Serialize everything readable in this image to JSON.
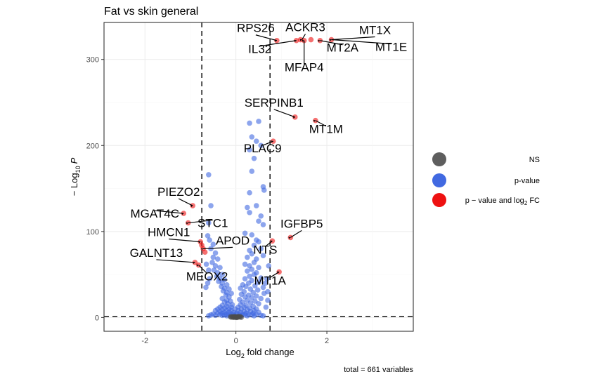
{
  "chart_data": {
    "type": "scatter",
    "title": "Fat vs skin general",
    "xlabel_prefix": "Log",
    "xlabel_sub": "2",
    "xlabel_suffix": " fold change",
    "ylabel_prefix": "− Log",
    "ylabel_sub": "10",
    "ylabel_var": "P",
    "xlim": [
      -2.9,
      3.9
    ],
    "ylim": [
      -16,
      343
    ],
    "xticks": [
      -2,
      0,
      2
    ],
    "yticks": [
      0,
      100,
      200,
      300
    ],
    "grid": true,
    "fc_cutoff": 0.75,
    "p_cutoff_y": 1.3,
    "caption": "total = 661 variables",
    "colors": {
      "ns": "#4d4d4d",
      "pvalue": "#4169e1",
      "both": "#ee1111"
    },
    "legend": {
      "placement": "right",
      "entries": [
        {
          "key": "ns",
          "label": "NS"
        },
        {
          "key": "pvalue",
          "label": "p-value"
        },
        {
          "key": "both",
          "label_prefix": "p − value and log",
          "label_sub": "2",
          "label_suffix": " FC"
        }
      ]
    },
    "series": [
      {
        "name": "p-value",
        "points": [
          [
            -0.6,
            166
          ],
          [
            -0.55,
            130
          ],
          [
            -0.6,
            110
          ],
          [
            -0.62,
            95
          ],
          [
            -0.58,
            90
          ],
          [
            -0.5,
            85
          ],
          [
            -0.55,
            80
          ],
          [
            -0.45,
            75
          ],
          [
            -0.5,
            70
          ],
          [
            -0.4,
            68
          ],
          [
            -0.52,
            64
          ],
          [
            -0.45,
            60
          ],
          [
            -0.35,
            58
          ],
          [
            -0.48,
            55
          ],
          [
            -0.4,
            52
          ],
          [
            -0.3,
            50
          ],
          [
            -0.42,
            48
          ],
          [
            -0.35,
            45
          ],
          [
            -0.25,
            44
          ],
          [
            -0.38,
            42
          ],
          [
            -0.3,
            40
          ],
          [
            -0.2,
            38
          ],
          [
            -0.32,
            36
          ],
          [
            -0.25,
            34
          ],
          [
            -0.15,
            33
          ],
          [
            -0.28,
            31
          ],
          [
            -0.2,
            29
          ],
          [
            -0.1,
            28
          ],
          [
            -0.22,
            26
          ],
          [
            -0.15,
            24
          ],
          [
            -0.3,
            22
          ],
          [
            -0.2,
            20
          ],
          [
            -0.12,
            19
          ],
          [
            -0.25,
            18
          ],
          [
            -0.18,
            16
          ],
          [
            -0.08,
            15
          ],
          [
            -0.3,
            14
          ],
          [
            -0.2,
            13
          ],
          [
            -0.1,
            12
          ],
          [
            -0.35,
            12
          ],
          [
            -0.25,
            11
          ],
          [
            -0.15,
            10
          ],
          [
            -0.4,
            10
          ],
          [
            -0.3,
            9
          ],
          [
            -0.2,
            8
          ],
          [
            -0.1,
            8
          ],
          [
            -0.45,
            8
          ],
          [
            -0.35,
            7
          ],
          [
            -0.25,
            6
          ],
          [
            -0.15,
            6
          ],
          [
            -0.05,
            6
          ],
          [
            -0.4,
            5
          ],
          [
            -0.3,
            5
          ],
          [
            -0.2,
            4
          ],
          [
            -0.1,
            4
          ],
          [
            -0.5,
            4
          ],
          [
            -0.35,
            3.5
          ],
          [
            -0.25,
            3
          ],
          [
            -0.15,
            3
          ],
          [
            -0.05,
            3
          ],
          [
            -0.55,
            3
          ],
          [
            -0.45,
            2.5
          ],
          [
            -0.3,
            2.5
          ],
          [
            -0.2,
            2
          ],
          [
            -0.1,
            2
          ],
          [
            -0.6,
            2
          ],
          [
            -0.65,
            62
          ],
          [
            -0.6,
            55
          ],
          [
            -0.58,
            45
          ],
          [
            -0.62,
            40
          ],
          [
            -0.66,
            35
          ],
          [
            0.3,
            226
          ],
          [
            0.5,
            228
          ],
          [
            0.35,
            210
          ],
          [
            0.45,
            205
          ],
          [
            0.55,
            200
          ],
          [
            0.3,
            195
          ],
          [
            0.4,
            185
          ],
          [
            0.35,
            170
          ],
          [
            0.6,
            152
          ],
          [
            0.62,
            148
          ],
          [
            0.3,
            145
          ],
          [
            0.45,
            130
          ],
          [
            0.25,
            128
          ],
          [
            0.3,
            122
          ],
          [
            0.55,
            118
          ],
          [
            0.5,
            112
          ],
          [
            0.6,
            108
          ],
          [
            0.2,
            98
          ],
          [
            0.35,
            96
          ],
          [
            0.45,
            90
          ],
          [
            0.5,
            88
          ],
          [
            0.4,
            84
          ],
          [
            0.55,
            80
          ],
          [
            0.3,
            78
          ],
          [
            0.35,
            74
          ],
          [
            0.6,
            72
          ],
          [
            0.25,
            70
          ],
          [
            0.45,
            68
          ],
          [
            0.4,
            64
          ],
          [
            0.2,
            62
          ],
          [
            0.3,
            60
          ],
          [
            0.5,
            58
          ],
          [
            0.35,
            56
          ],
          [
            0.25,
            54
          ],
          [
            0.45,
            52
          ],
          [
            0.4,
            50
          ],
          [
            0.3,
            48
          ],
          [
            0.55,
            46
          ],
          [
            0.2,
            45
          ],
          [
            0.35,
            43
          ],
          [
            0.5,
            41
          ],
          [
            0.28,
            40
          ],
          [
            0.15,
            38
          ],
          [
            0.42,
            37
          ],
          [
            0.22,
            36
          ],
          [
            0.6,
            35
          ],
          [
            0.1,
            34
          ],
          [
            0.32,
            33
          ],
          [
            0.48,
            32
          ],
          [
            0.18,
            30
          ],
          [
            0.38,
            29
          ],
          [
            0.62,
            28
          ],
          [
            0.12,
            27
          ],
          [
            0.28,
            26
          ],
          [
            0.45,
            25
          ],
          [
            0.2,
            24
          ],
          [
            0.35,
            23
          ],
          [
            0.55,
            22
          ],
          [
            0.08,
            21
          ],
          [
            0.25,
            20
          ],
          [
            0.42,
            19
          ],
          [
            0.15,
            18
          ],
          [
            0.32,
            17
          ],
          [
            0.5,
            16
          ],
          [
            0.1,
            15
          ],
          [
            0.22,
            14
          ],
          [
            0.38,
            13
          ],
          [
            0.05,
            12
          ],
          [
            0.18,
            12
          ],
          [
            0.3,
            11
          ],
          [
            0.45,
            10
          ],
          [
            0.12,
            10
          ],
          [
            0.25,
            9
          ],
          [
            0.4,
            8
          ],
          [
            0.05,
            8
          ],
          [
            0.18,
            7
          ],
          [
            0.32,
            7
          ],
          [
            0.5,
            6
          ],
          [
            0.1,
            6
          ],
          [
            0.22,
            5
          ],
          [
            0.38,
            5
          ],
          [
            0.02,
            5
          ],
          [
            0.15,
            4
          ],
          [
            0.28,
            4
          ],
          [
            0.45,
            3.5
          ],
          [
            0.08,
            3
          ],
          [
            0.2,
            3
          ],
          [
            0.35,
            3
          ],
          [
            0.55,
            2.5
          ],
          [
            0.12,
            2.5
          ],
          [
            0.25,
            2
          ],
          [
            0.4,
            2
          ],
          [
            0.6,
            2
          ],
          [
            0.7,
            30
          ],
          [
            0.68,
            45
          ],
          [
            0.72,
            60
          ],
          [
            0.65,
            40
          ],
          [
            0.7,
            20
          ],
          [
            0.66,
            12
          ],
          [
            -0.02,
            2
          ],
          [
            0.0,
            4
          ],
          [
            -0.02,
            10
          ]
        ]
      },
      {
        "name": "NS",
        "points": [
          [
            -0.05,
            0.2
          ],
          [
            -0.02,
            0.5
          ],
          [
            0.0,
            0.8
          ],
          [
            0.03,
            0.3
          ],
          [
            0.06,
            0.6
          ],
          [
            -0.08,
            0.9
          ],
          [
            0.08,
            1.0
          ],
          [
            -0.1,
            0.4
          ],
          [
            0.1,
            0.7
          ],
          [
            -0.03,
            1.1
          ],
          [
            0.02,
            0.1
          ],
          [
            0.05,
            1.2
          ],
          [
            -0.06,
            0.6
          ],
          [
            0.12,
            0.3
          ],
          [
            -0.12,
            0.8
          ],
          [
            0.0,
            0.2
          ]
        ]
      },
      {
        "name": "p − value and log2 FC",
        "points": [
          [
            0.9,
            322
          ],
          [
            1.33,
            322
          ],
          [
            1.5,
            322
          ],
          [
            1.42,
            323
          ],
          [
            1.65,
            323
          ],
          [
            1.85,
            322
          ],
          [
            2.1,
            323
          ],
          [
            1.3,
            233
          ],
          [
            1.75,
            229
          ],
          [
            0.82,
            205
          ],
          [
            -1.15,
            121
          ],
          [
            -0.95,
            130
          ],
          [
            -1.05,
            110
          ],
          [
            -0.78,
            88
          ],
          [
            -0.75,
            84
          ],
          [
            -0.72,
            80
          ],
          [
            -0.68,
            76
          ],
          [
            -0.9,
            64
          ],
          [
            -0.82,
            61
          ],
          [
            1.2,
            93
          ],
          [
            0.8,
            89
          ],
          [
            0.95,
            53
          ]
        ]
      }
    ],
    "annotations": [
      {
        "text": "RPS26",
        "point": [
          0.9,
          322
        ]
      },
      {
        "text": "ACKR3",
        "point": [
          1.45,
          323
        ]
      },
      {
        "text": "MT1X",
        "point": [
          2.1,
          323
        ]
      },
      {
        "text": "IL32",
        "point": [
          1.33,
          322
        ]
      },
      {
        "text": "MT2A",
        "point": [
          1.85,
          322
        ]
      },
      {
        "text": "MT1E",
        "point": [
          2.1,
          323
        ]
      },
      {
        "text": "MFAP4",
        "point": [
          1.5,
          322
        ]
      },
      {
        "text": "SERPINB1",
        "point": [
          1.3,
          233
        ]
      },
      {
        "text": "MT1M",
        "point": [
          1.75,
          229
        ]
      },
      {
        "text": "PLAC9",
        "point": [
          0.82,
          205
        ]
      },
      {
        "text": "PIEZO2",
        "point": [
          -0.95,
          130
        ]
      },
      {
        "text": "MGAT4C",
        "point": [
          -1.15,
          121
        ]
      },
      {
        "text": "STC1",
        "point": [
          -1.05,
          110
        ]
      },
      {
        "text": "IGFBP5",
        "point": [
          1.2,
          93
        ]
      },
      {
        "text": "HMCN1",
        "point": [
          -0.78,
          88
        ]
      },
      {
        "text": "NTS",
        "point": [
          0.8,
          89
        ]
      },
      {
        "text": "GALNT13",
        "point": [
          -0.9,
          64
        ]
      },
      {
        "text": "APOD",
        "point": [
          -0.72,
          80
        ]
      },
      {
        "text": "MEOX2",
        "point": [
          -0.82,
          61
        ]
      },
      {
        "text": "MT1A",
        "point": [
          0.95,
          53
        ]
      }
    ]
  }
}
